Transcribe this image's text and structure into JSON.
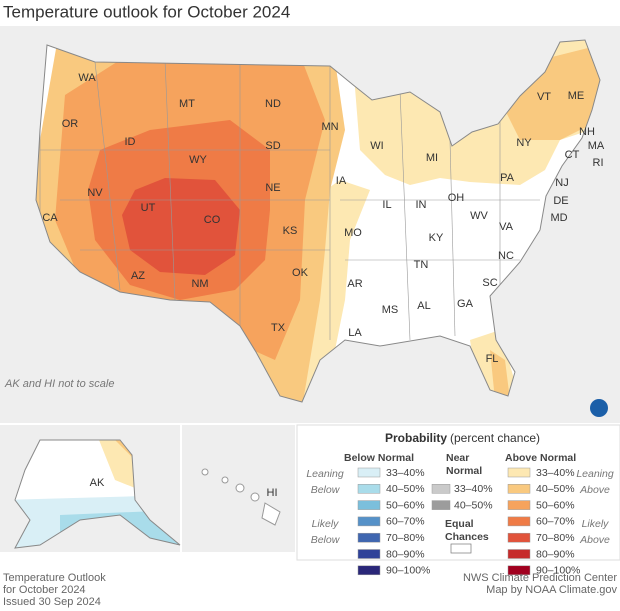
{
  "header": {
    "title": "Temperature outlook for October 2024"
  },
  "map": {
    "note": "AK and HI not to scale",
    "states": [
      "WA",
      "OR",
      "CA",
      "NV",
      "ID",
      "MT",
      "WY",
      "UT",
      "CO",
      "AZ",
      "NM",
      "ND",
      "SD",
      "NE",
      "KS",
      "OK",
      "TX",
      "MN",
      "IA",
      "MO",
      "AR",
      "LA",
      "WI",
      "IL",
      "MI",
      "IN",
      "OH",
      "KY",
      "TN",
      "MS",
      "AL",
      "GA",
      "FL",
      "SC",
      "NC",
      "VA",
      "WV",
      "PA",
      "NY",
      "VT",
      "NH",
      "ME",
      "MA",
      "CT",
      "RI",
      "NJ",
      "DE",
      "MD"
    ],
    "insets": [
      "AK",
      "HI"
    ]
  },
  "legend": {
    "title": "Probability",
    "subtitle": "(percent chance)",
    "below": {
      "title": "Below Normal",
      "ranges": [
        "33–40%",
        "40–50%",
        "50–60%",
        "60–70%",
        "70–80%",
        "80–90%",
        "90–100%"
      ],
      "colors": [
        "#d9eff6",
        "#a9dcea",
        "#7bbfdc",
        "#5591c8",
        "#3f66b0",
        "#2f4299",
        "#2a2779"
      ],
      "leaning": [
        "Leaning",
        "Below"
      ],
      "likely": [
        "Likely",
        "Below"
      ]
    },
    "near": {
      "title": [
        "Near",
        "Normal"
      ],
      "ranges": [
        "33–40%",
        "40–50%"
      ],
      "colors": [
        "#cacaca",
        "#9c9c9c"
      ]
    },
    "equal": {
      "title": [
        "Equal",
        "Chances"
      ],
      "color": "#ffffff"
    },
    "above": {
      "title": "Above Normal",
      "ranges": [
        "33–40%",
        "40–50%",
        "50–60%",
        "60–70%",
        "70–80%",
        "80–90%",
        "90–100%"
      ],
      "colors": [
        "#fde8b2",
        "#f9c97f",
        "#f6a35d",
        "#ef7b46",
        "#e1533b",
        "#c62b2b",
        "#a1001f"
      ],
      "leaning": [
        "Leaning",
        "Above"
      ],
      "likely": [
        "Likely",
        "Above"
      ]
    }
  },
  "footer": {
    "left": [
      "Temperature Outlook",
      "for October 2024",
      "Issued 30 Sep 2024"
    ],
    "right": [
      "NWS Climate Prediction Center",
      "Map by NOAA Climate.gov"
    ]
  }
}
